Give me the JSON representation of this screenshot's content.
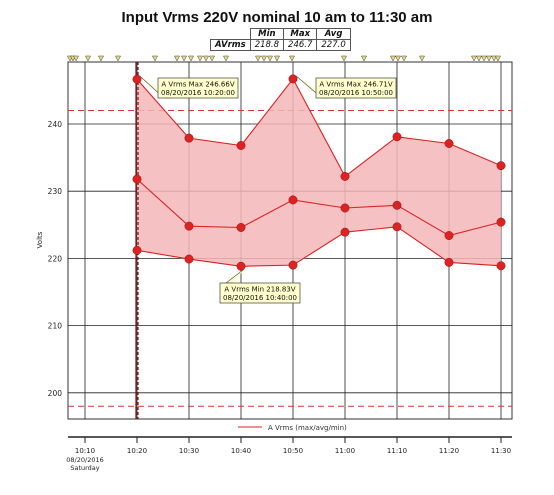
{
  "chart_data": {
    "type": "area",
    "title": "Input Vrms 220V nominal 10 am to 11:30 am",
    "ylabel": "Volts",
    "xlabel": "",
    "ylim": [
      195,
      250
    ],
    "yticks": [
      200,
      210,
      220,
      230,
      240
    ],
    "x_categories": [
      "10:10",
      "10:20",
      "10:30",
      "10:40",
      "10:50",
      "11:00",
      "11:10",
      "11:20",
      "11:30"
    ],
    "x_first_sublabel": [
      "08/20/2016",
      "Saturday"
    ],
    "points_x": [
      "10:20",
      "10:30",
      "10:40",
      "10:50",
      "11:00",
      "11:10",
      "11:20",
      "11:30"
    ],
    "series": [
      {
        "name": "max",
        "values": [
          246.66,
          237.9,
          236.8,
          246.71,
          232.2,
          238.1,
          237.1,
          233.8
        ]
      },
      {
        "name": "avg",
        "values": [
          231.8,
          224.8,
          224.6,
          228.7,
          227.5,
          227.9,
          223.4,
          225.4
        ]
      },
      {
        "name": "min",
        "values": [
          221.2,
          219.9,
          218.83,
          219.0,
          223.9,
          224.7,
          219.4,
          218.9
        ]
      }
    ],
    "limit_lines": [
      242,
      198
    ],
    "legend": "A Vrms (max/avg/min)",
    "legend_position": "bottom-center",
    "grid": true,
    "stats": {
      "headers": [
        "Min",
        "Max",
        "Avg"
      ],
      "row_label": "AVrms",
      "values": [
        "218.8",
        "246.7",
        "227.0"
      ]
    },
    "annotations": [
      {
        "line1": "A Vrms Max 246.66V",
        "line2": "08/20/2016 10:20:00",
        "x": "10:20",
        "y": 246.66
      },
      {
        "line1": "A Vrms Max 246.71V",
        "line2": "08/20/2016 10:50:00",
        "x": "10:50",
        "y": 246.71
      },
      {
        "line1": "A Vrms Min 218.83V",
        "line2": "08/20/2016 10:40:00",
        "x": "10:40",
        "y": 218.83
      }
    ],
    "colors": {
      "line": "#dd2222",
      "fill": "#f4b6b8",
      "limit": "#dd3333",
      "callout_bg": "#ffffcc",
      "event_flag": "#e6d985",
      "event_flag_active": "#cc2222"
    }
  }
}
